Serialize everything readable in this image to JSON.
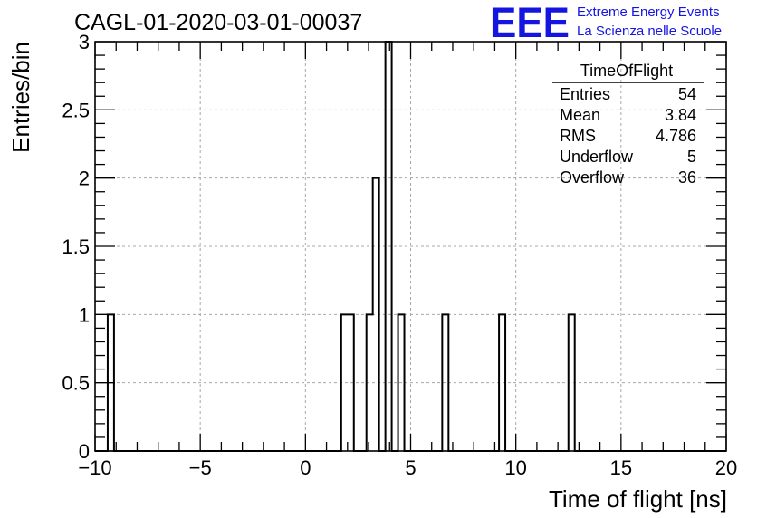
{
  "chart_data": {
    "type": "histogram",
    "title": "CAGL-01-2020-03-01-00037",
    "xlabel": "Time of flight [ns]",
    "ylabel": "Entries/bin",
    "xlim": [
      -10,
      20
    ],
    "ylim": [
      0,
      3
    ],
    "grid": true,
    "bin_width": 0.3,
    "x_ticks": [
      "−10",
      "−5",
      "0",
      "5",
      "10",
      "15",
      "20"
    ],
    "y_ticks": [
      "0",
      "0.5",
      "1",
      "1.5",
      "2",
      "2.5",
      "3"
    ],
    "bins": [
      {
        "x": -9.25,
        "y": 1
      },
      {
        "x": 1.85,
        "y": 1
      },
      {
        "x": 2.15,
        "y": 1
      },
      {
        "x": 3.05,
        "y": 1
      },
      {
        "x": 3.35,
        "y": 2
      },
      {
        "x": 3.95,
        "y": 3
      },
      {
        "x": 4.55,
        "y": 1
      },
      {
        "x": 6.65,
        "y": 1
      },
      {
        "x": 9.35,
        "y": 1
      },
      {
        "x": 12.65,
        "y": 1
      }
    ],
    "stats": {
      "title": "TimeOfFlight",
      "rows": [
        {
          "label": "Entries",
          "value": "54"
        },
        {
          "label": "Mean",
          "value": "3.84"
        },
        {
          "label": "RMS",
          "value": "4.786"
        },
        {
          "label": "Underflow",
          "value": "5"
        },
        {
          "label": "Overflow",
          "value": "36"
        }
      ]
    }
  },
  "logo": {
    "mark": "EEE",
    "line1": "Extreme Energy Events",
    "line2": "La Scienza nelle Scuole",
    "color": "#1515e0"
  }
}
